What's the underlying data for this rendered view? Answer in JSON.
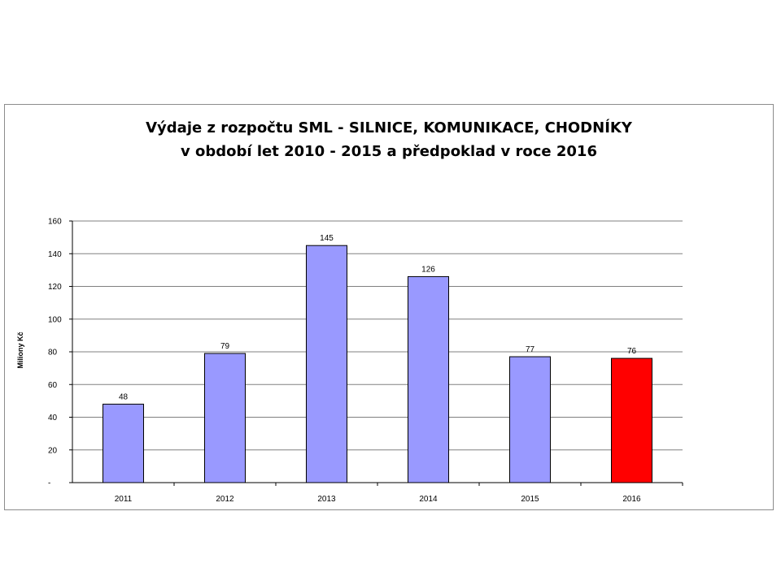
{
  "chart_data": {
    "type": "bar",
    "title": "Výdaje z rozpočtu SML - SILNICE, KOMUNIKACE, CHODNÍKY",
    "subtitle": "v období let 2010 - 2015 a předpoklad v roce 2016",
    "xlabel": "",
    "ylabel": "Miliony Kč",
    "categories": [
      "2011",
      "2012",
      "2013",
      "2014",
      "2015",
      "2016"
    ],
    "values": [
      48,
      79,
      145,
      126,
      77,
      76
    ],
    "data_labels": [
      "48",
      "79",
      "145",
      "126",
      "77",
      "76"
    ],
    "bar_colors": [
      "#9999ff",
      "#9999ff",
      "#9999ff",
      "#9999ff",
      "#9999ff",
      "#ff0000"
    ],
    "ylim": [
      0,
      160
    ],
    "yticks": [
      0,
      20,
      40,
      60,
      80,
      100,
      120,
      140,
      160
    ],
    "ytick_labels": [
      "-",
      "20",
      "40",
      "60",
      "80",
      "100",
      "120",
      "140",
      "160"
    ],
    "grid": true,
    "legend": "none",
    "colors": {
      "bar": "#9999ff",
      "highlight": "#ff0000",
      "grid": "#808080",
      "frame_border": "#8c8c8c"
    }
  }
}
